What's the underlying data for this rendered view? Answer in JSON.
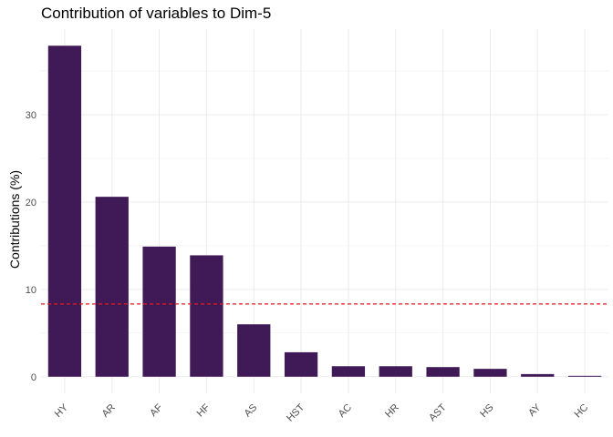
{
  "chart_data": {
    "type": "bar",
    "title": "Contribution of variables to Dim-5",
    "xlabel": "",
    "ylabel": "Contributions (%)",
    "categories": [
      "HY",
      "AR",
      "AF",
      "HF",
      "AS",
      "HST",
      "AC",
      "HR",
      "AST",
      "HS",
      "AY",
      "HC"
    ],
    "values": [
      37.9,
      20.6,
      14.9,
      13.9,
      6.0,
      2.8,
      1.2,
      1.2,
      1.1,
      0.9,
      0.3,
      0.1
    ],
    "ylim": [
      -1.9,
      39.8
    ],
    "yticks": [
      0,
      10,
      20,
      30
    ],
    "yticks_labels": [
      "0",
      "10",
      "20",
      "30"
    ],
    "reference_line": {
      "value": 8.33,
      "style": "dashed",
      "color": "#e41a1c"
    },
    "bar_color": "#3f1a57",
    "grid": true,
    "grid_color": "#ebebeb",
    "legend": "none",
    "x_tick_rotation": "45 degrees"
  }
}
